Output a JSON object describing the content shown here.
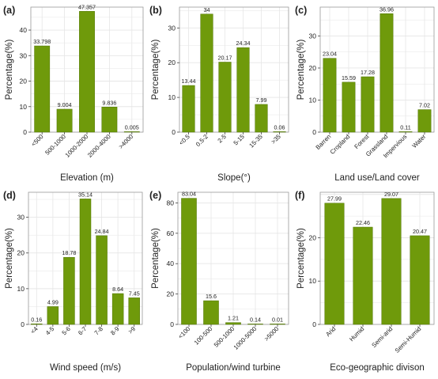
{
  "colors": {
    "bar": "#6f9a0b",
    "bar_edge": "#4f7400",
    "grid": "#e6e6e6",
    "axis": "#444444",
    "text": "#222222"
  },
  "chart_data": [
    {
      "panel": "(a)",
      "type": "bar",
      "ylabel": "Percentage(%)",
      "xlabel": "Elevation (m)",
      "categories": [
        "<500",
        "500-1000",
        "1000-2000",
        "2000-4000",
        ">4000"
      ],
      "values": [
        33.798,
        9.004,
        47.357,
        9.836,
        0.005
      ],
      "value_labels": [
        "33.798",
        "9.004",
        "47.357",
        "9.836",
        "0.005"
      ],
      "ylim": [
        0,
        49
      ],
      "yticks": [
        0,
        10,
        20,
        30,
        40
      ],
      "tick_rotation": -45,
      "grid": true
    },
    {
      "panel": "(b)",
      "type": "bar",
      "ylabel": "Percentage(%)",
      "xlabel": "Slope(°)",
      "categories": [
        "<0.5",
        "0.5-2",
        "2-5",
        "5-15",
        "15-35",
        ">35"
      ],
      "values": [
        13.44,
        34,
        20.17,
        24.34,
        7.99,
        0.06
      ],
      "value_labels": [
        "13.44",
        "34",
        "20.17",
        "24.34",
        "7.99",
        "0.06"
      ],
      "ylim": [
        0,
        36
      ],
      "yticks": [
        0,
        10,
        20,
        30
      ],
      "tick_rotation": -45,
      "grid": true
    },
    {
      "panel": "(c)",
      "type": "bar",
      "ylabel": "Percentage(%)",
      "xlabel": "Land use/Land cover",
      "categories": [
        "Barren",
        "Cropland",
        "Forest",
        "Grassland",
        "Impervious",
        "Water"
      ],
      "values": [
        23.04,
        15.59,
        17.28,
        36.96,
        0.11,
        7.02
      ],
      "value_labels": [
        "23.04",
        "15.59",
        "17.28",
        "36.96",
        "0.11",
        "7.02"
      ],
      "ylim": [
        0,
        39
      ],
      "yticks": [
        0,
        10,
        20,
        30
      ],
      "tick_rotation": -45,
      "grid": true
    },
    {
      "panel": "(d)",
      "type": "bar",
      "ylabel": "Percentage(%)",
      "xlabel": "Wind speed (m/s)",
      "categories": [
        "<4",
        "4-5",
        "5-6",
        "6-7",
        "7-8",
        "8-9",
        ">9"
      ],
      "values": [
        0.16,
        4.99,
        18.78,
        35.14,
        24.84,
        8.64,
        7.45
      ],
      "value_labels": [
        "0.16",
        "4.99",
        "18.78",
        "35.14",
        "24.84",
        "8.64",
        "7.45"
      ],
      "ylim": [
        0,
        37
      ],
      "yticks": [
        0,
        10,
        20,
        30
      ],
      "tick_rotation": -45,
      "grid": true
    },
    {
      "panel": "(e)",
      "type": "bar",
      "ylabel": "Percentage(%)",
      "xlabel": "Population/wind turbine",
      "categories": [
        "<100",
        "100-500",
        "500-1000",
        "1000-5000",
        ">5000"
      ],
      "values": [
        83.04,
        15.6,
        1.21,
        0.14,
        0.01
      ],
      "value_labels": [
        "83.04",
        "15.6",
        "1.21",
        "0.14",
        "0.01"
      ],
      "ylim": [
        0,
        87
      ],
      "yticks": [
        0,
        20,
        40,
        60,
        80
      ],
      "tick_rotation": -45,
      "grid": true
    },
    {
      "panel": "(f)",
      "type": "bar",
      "ylabel": "Percentage(%)",
      "xlabel": "Eco-geographic divison",
      "categories": [
        "Arid",
        "Humid",
        "Semi-arid",
        "Semi-Humid"
      ],
      "values": [
        27.99,
        22.46,
        29.07,
        20.47
      ],
      "value_labels": [
        "27.99",
        "22.46",
        "29.07",
        "20.47"
      ],
      "ylim": [
        0,
        30.5
      ],
      "yticks": [
        0,
        10,
        20
      ],
      "tick_rotation": -45,
      "grid": true
    }
  ]
}
